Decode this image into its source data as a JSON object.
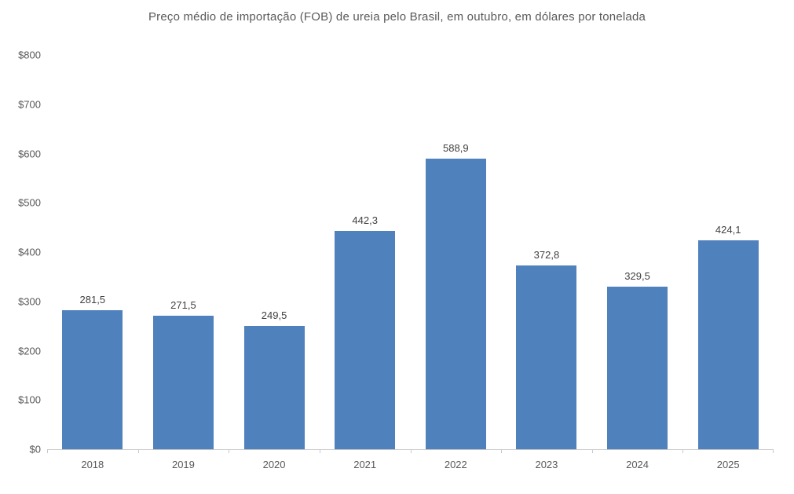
{
  "chart_data": {
    "type": "bar",
    "title": "Preço médio de importação (FOB) de ureia pelo Brasil, em outubro, em dólares por tonelada",
    "categories": [
      "2018",
      "2019",
      "2020",
      "2021",
      "2022",
      "2023",
      "2024",
      "2025"
    ],
    "values": [
      281.5,
      271.5,
      249.5,
      442.3,
      588.9,
      372.8,
      329.5,
      424.1
    ],
    "value_labels": [
      "281,5",
      "271,5",
      "249,5",
      "442,3",
      "588,9",
      "372,8",
      "329,5",
      "424,1"
    ],
    "xlabel": "",
    "ylabel": "",
    "ylim": [
      0,
      800
    ],
    "ytick_interval": 100,
    "ytick_labels": [
      "$0",
      "$100",
      "$200",
      "$300",
      "$400",
      "$500",
      "$600",
      "$700",
      "$800"
    ],
    "grid": false,
    "legend": "none",
    "colors": {
      "bar": "#4f81bd",
      "axis_line": "#c9c9c9",
      "axis_text": "#595959",
      "value_label_text": "#404040",
      "title_text": "#595959"
    }
  }
}
